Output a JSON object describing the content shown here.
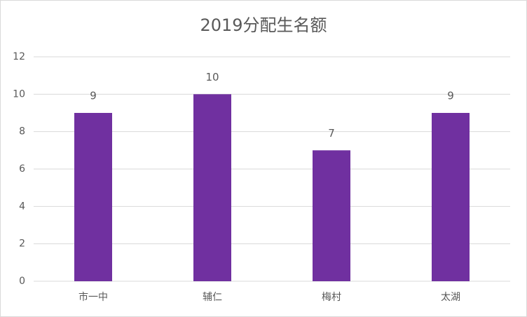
{
  "chart_data": {
    "type": "bar",
    "title": "2019分配生名额",
    "categories": [
      "市一中",
      "辅仁",
      "梅村",
      "太湖"
    ],
    "values": [
      9,
      10,
      7,
      9
    ],
    "color": "#7030a0",
    "ylim": [
      0,
      12
    ],
    "yticks": [
      0,
      2,
      4,
      6,
      8,
      10,
      12
    ],
    "grid": true,
    "data_labels": true
  }
}
